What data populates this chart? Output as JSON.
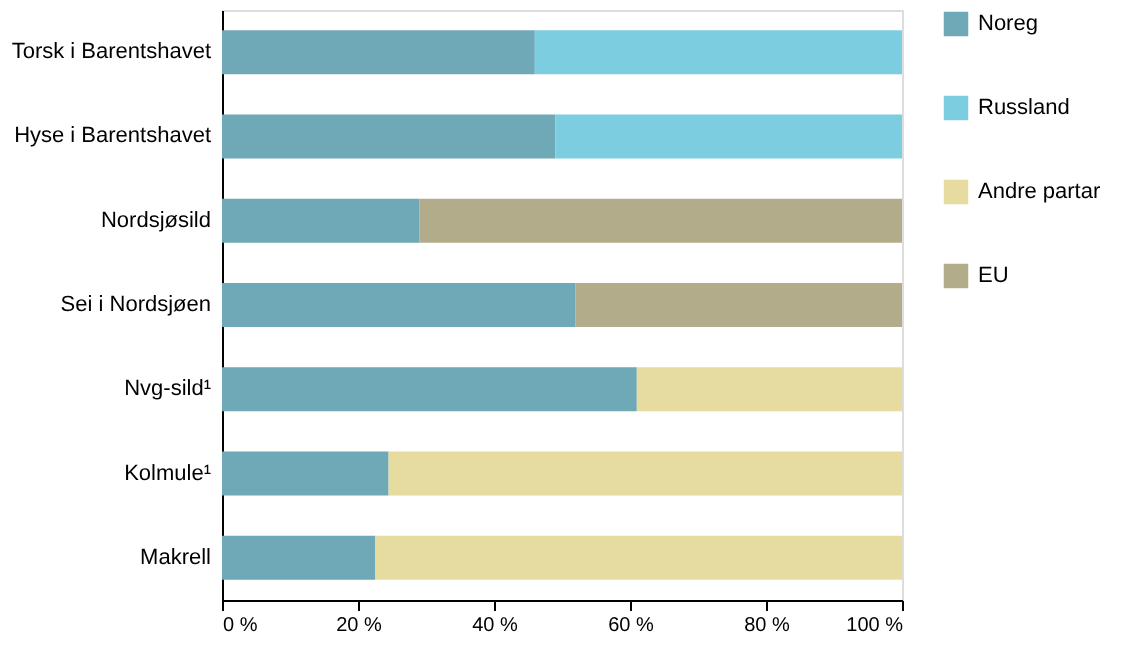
{
  "chart_data": {
    "type": "bar",
    "orientation": "horizontal",
    "stacked": true,
    "categories": [
      "Torsk i Barentshavet",
      "Hyse i Barentshavet",
      "Nordsjøsild",
      "Sei i Nordsjøen",
      "Nvg-sild¹",
      "Kolmule¹",
      "Makrell"
    ],
    "series": [
      {
        "name": "Noreg",
        "color": "#6fa8b6",
        "values": [
          46,
          49,
          29,
          52,
          61,
          24.5,
          22.5
        ]
      },
      {
        "name": "Russland",
        "color": "#7dcde0",
        "values": [
          54,
          51,
          null,
          null,
          null,
          null,
          null
        ]
      },
      {
        "name": "Andre partar",
        "color": "#e6dca0",
        "values": [
          null,
          null,
          null,
          null,
          39,
          75.5,
          77.5
        ]
      },
      {
        "name": "EU",
        "color": "#b3ac8a",
        "values": [
          null,
          null,
          71,
          48,
          null,
          null,
          null
        ]
      }
    ],
    "xlim": [
      0,
      100
    ],
    "xticks": [
      {
        "value": 0,
        "label": "0 %"
      },
      {
        "value": 20,
        "label": "20 %"
      },
      {
        "value": 40,
        "label": "40 %"
      },
      {
        "value": 60,
        "label": "60 %"
      },
      {
        "value": 80,
        "label": "80 %"
      },
      {
        "value": 100,
        "label": "100 %"
      }
    ],
    "grid": false,
    "legend": "right"
  }
}
